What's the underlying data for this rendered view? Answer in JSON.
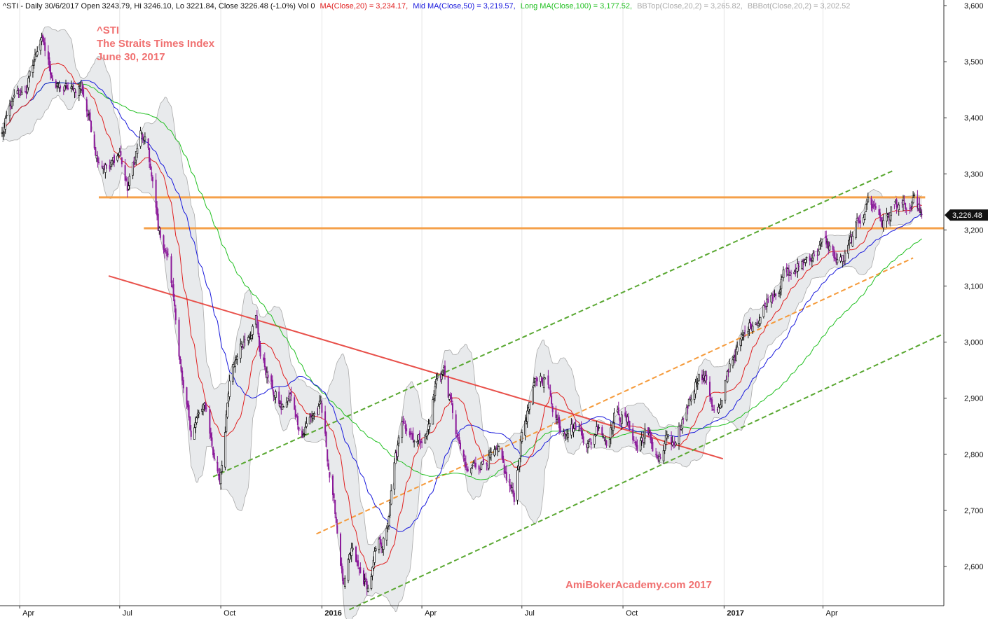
{
  "header": {
    "prefix": "^STI - Daily 30/6/2017 Open 3243.79, Hi 3246.10, Lo 3221.84, Close 3226.48 (-1.0%) Vol 0",
    "ma20": "MA(Close,20) = 3,234.17,",
    "ma50": "Mid MA(Close,50) = 3,219.57,",
    "ma100": "Long MA(Close,100) = 3,177.52,",
    "bbtop": "BBTop(Close,20,2) = 3,265.82,",
    "bbbot": "BBBot(Close,20,2) = 3,202.52"
  },
  "annotations": {
    "symbol": "^STI",
    "name": "The Straits Times Index",
    "date": "June 30, 2017",
    "watermark": "AmiBokerAcademy.com 2017"
  },
  "colors": {
    "ma20": "#e02020",
    "ma50": "#1a1adc",
    "ma100": "#22c022",
    "bbtop": "#aaaaaa",
    "bbbot": "#aaaaaa",
    "band_fill": "#e8eaec",
    "candle_down": "#8b1a9a",
    "candle_up": "#111111",
    "annotation_text": "#f07070",
    "support_resistance": "#f5a04a",
    "trend_red": "#e8504a",
    "trend_green": "#5aa832",
    "trend_orange": "#f59a3a",
    "grid": "#e4e4e4",
    "price_tag_bg": "#111111"
  },
  "chart_data": {
    "type": "candlestick",
    "y_axis": {
      "min": 2530,
      "max": 3610,
      "ticks": [
        "2,600",
        "2,700",
        "2,800",
        "2,900",
        "3,000",
        "3,100",
        "3,200",
        "3,300",
        "3,400",
        "3,500",
        "3,600"
      ],
      "position": "right"
    },
    "x_axis": {
      "start": "2015-03-16",
      "end": "2017-07-20",
      "ticks": [
        {
          "label": "Apr",
          "date": "2015-04-01",
          "bold": false
        },
        {
          "label": "Jul",
          "date": "2015-07-01",
          "bold": false
        },
        {
          "label": "Oct",
          "date": "2015-10-01",
          "bold": false
        },
        {
          "label": "2016",
          "date": "2016-01-01",
          "bold": true
        },
        {
          "label": "Apr",
          "date": "2016-04-01",
          "bold": false
        },
        {
          "label": "Jul",
          "date": "2016-07-01",
          "bold": false
        },
        {
          "label": "Oct",
          "date": "2016-10-01",
          "bold": false
        },
        {
          "label": "2017",
          "date": "2017-01-01",
          "bold": true
        },
        {
          "label": "Apr",
          "date": "2017-04-01",
          "bold": false
        }
      ]
    },
    "last_close": {
      "value": 3226.48,
      "label": "3,226.48"
    },
    "close_path": [
      [
        "2015-03-16",
        3370
      ],
      [
        "2015-03-25",
        3420
      ],
      [
        "2015-04-08",
        3455
      ],
      [
        "2015-04-20",
        3545
      ],
      [
        "2015-04-27",
        3495
      ],
      [
        "2015-05-05",
        3455
      ],
      [
        "2015-05-18",
        3445
      ],
      [
        "2015-05-27",
        3460
      ],
      [
        "2015-06-10",
        3340
      ],
      [
        "2015-06-22",
        3310
      ],
      [
        "2015-07-01",
        3340
      ],
      [
        "2015-07-08",
        3270
      ],
      [
        "2015-07-20",
        3370
      ],
      [
        "2015-07-27",
        3335
      ],
      [
        "2015-08-05",
        3200
      ],
      [
        "2015-08-14",
        3150
      ],
      [
        "2015-08-21",
        3050
      ],
      [
        "2015-08-28",
        2900
      ],
      [
        "2015-09-04",
        2840
      ],
      [
        "2015-09-11",
        2870
      ],
      [
        "2015-09-18",
        2880
      ],
      [
        "2015-09-25",
        2790
      ],
      [
        "2015-09-30",
        2760
      ],
      [
        "2015-10-09",
        2920
      ],
      [
        "2015-10-16",
        2980
      ],
      [
        "2015-10-23",
        3010
      ],
      [
        "2015-11-02",
        3050
      ],
      [
        "2015-11-06",
        2980
      ],
      [
        "2015-11-16",
        2920
      ],
      [
        "2015-11-25",
        2880
      ],
      [
        "2015-12-03",
        2900
      ],
      [
        "2015-12-14",
        2840
      ],
      [
        "2015-12-23",
        2870
      ],
      [
        "2015-12-31",
        2882
      ],
      [
        "2016-01-07",
        2780
      ],
      [
        "2016-01-14",
        2680
      ],
      [
        "2016-01-21",
        2560
      ],
      [
        "2016-01-28",
        2620
      ],
      [
        "2016-02-05",
        2580
      ],
      [
        "2016-02-12",
        2560
      ],
      [
        "2016-02-19",
        2620
      ],
      [
        "2016-02-29",
        2660
      ],
      [
        "2016-03-08",
        2790
      ],
      [
        "2016-03-16",
        2860
      ],
      [
        "2016-03-28",
        2830
      ],
      [
        "2016-04-06",
        2840
      ],
      [
        "2016-04-15",
        2940
      ],
      [
        "2016-04-21",
        2950
      ],
      [
        "2016-05-03",
        2830
      ],
      [
        "2016-05-12",
        2760
      ],
      [
        "2016-05-20",
        2780
      ],
      [
        "2016-06-01",
        2800
      ],
      [
        "2016-06-10",
        2790
      ],
      [
        "2016-06-17",
        2750
      ],
      [
        "2016-06-24",
        2720
      ],
      [
        "2016-07-01",
        2840
      ],
      [
        "2016-07-08",
        2890
      ],
      [
        "2016-07-15",
        2930
      ],
      [
        "2016-07-22",
        2940
      ],
      [
        "2016-07-29",
        2890
      ],
      [
        "2016-08-05",
        2850
      ],
      [
        "2016-08-15",
        2860
      ],
      [
        "2016-08-24",
        2840
      ],
      [
        "2016-09-02",
        2820
      ],
      [
        "2016-09-09",
        2860
      ],
      [
        "2016-09-16",
        2830
      ],
      [
        "2016-09-23",
        2870
      ],
      [
        "2016-09-30",
        2870
      ],
      [
        "2016-10-07",
        2850
      ],
      [
        "2016-10-14",
        2810
      ],
      [
        "2016-10-21",
        2840
      ],
      [
        "2016-10-28",
        2810
      ],
      [
        "2016-11-04",
        2790
      ],
      [
        "2016-11-11",
        2830
      ],
      [
        "2016-11-18",
        2800
      ],
      [
        "2016-11-25",
        2860
      ],
      [
        "2016-12-02",
        2910
      ],
      [
        "2016-12-09",
        2950
      ],
      [
        "2016-12-16",
        2930
      ],
      [
        "2016-12-23",
        2880
      ],
      [
        "2016-12-30",
        2880
      ],
      [
        "2017-01-06",
        2960
      ],
      [
        "2017-01-13",
        2990
      ],
      [
        "2017-01-20",
        3010
      ],
      [
        "2017-01-27",
        3040
      ],
      [
        "2017-02-03",
        3050
      ],
      [
        "2017-02-10",
        3080
      ],
      [
        "2017-02-17",
        3100
      ],
      [
        "2017-02-24",
        3120
      ],
      [
        "2017-03-03",
        3120
      ],
      [
        "2017-03-10",
        3130
      ],
      [
        "2017-03-17",
        3150
      ],
      [
        "2017-03-24",
        3160
      ],
      [
        "2017-03-31",
        3175
      ],
      [
        "2017-04-07",
        3170
      ],
      [
        "2017-04-14",
        3140
      ],
      [
        "2017-04-21",
        3150
      ],
      [
        "2017-04-28",
        3180
      ],
      [
        "2017-05-05",
        3220
      ],
      [
        "2017-05-12",
        3255
      ],
      [
        "2017-05-19",
        3240
      ],
      [
        "2017-05-26",
        3215
      ],
      [
        "2017-06-02",
        3235
      ],
      [
        "2017-06-09",
        3250
      ],
      [
        "2017-06-16",
        3230
      ],
      [
        "2017-06-23",
        3240
      ],
      [
        "2017-06-30",
        3226
      ]
    ],
    "support_resistance": [
      {
        "value": 3258,
        "from": "2015-06-12",
        "to": "2017-07-03"
      },
      {
        "value": 3203,
        "from": "2015-07-23",
        "to": "2017-07-20"
      }
    ],
    "trend_lines": [
      {
        "color_key": "trend_red",
        "style": "solid",
        "from": [
          "2015-06-21",
          3118
        ],
        "to": [
          "2016-12-31",
          2792
        ]
      },
      {
        "color_key": "trend_green",
        "style": "dashed",
        "from": [
          "2015-09-24",
          2760
        ],
        "to": [
          "2017-06-03",
          3305
        ]
      },
      {
        "color_key": "trend_green",
        "style": "dashed",
        "from": [
          "2016-01-26",
          2523
        ],
        "to": [
          "2017-07-20",
          3015
        ]
      },
      {
        "color_key": "trend_orange",
        "style": "dashed",
        "from": [
          "2015-12-27",
          2658
        ],
        "to": [
          "2017-06-22",
          3150
        ]
      }
    ]
  }
}
